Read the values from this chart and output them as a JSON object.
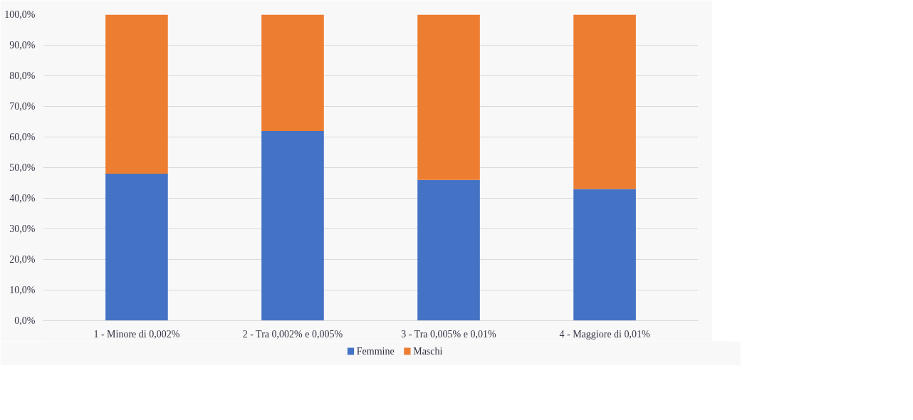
{
  "chart_data": {
    "type": "bar",
    "stacked": true,
    "categories": [
      "1 - Minore di 0,002%",
      "2 - Tra 0,002% e 0,005%",
      "3 - Tra 0,005% e 0,01%",
      "4 - Maggiore di 0,01%"
    ],
    "series": [
      {
        "name": "Femmine",
        "color": "#4472c4",
        "values": [
          48,
          62,
          46,
          43
        ]
      },
      {
        "name": "Maschi",
        "color": "#ed7d31",
        "values": [
          52,
          38,
          54,
          57
        ]
      }
    ],
    "ylim": [
      0,
      100
    ],
    "yticks": [
      {
        "value": 0,
        "label": "0,0%"
      },
      {
        "value": 10,
        "label": "10,0%"
      },
      {
        "value": 20,
        "label": "20,0%"
      },
      {
        "value": 30,
        "label": "30,0%"
      },
      {
        "value": 40,
        "label": "40,0%"
      },
      {
        "value": 50,
        "label": "50,0%"
      },
      {
        "value": 60,
        "label": "60,0%"
      },
      {
        "value": 70,
        "label": "70,0%"
      },
      {
        "value": 80,
        "label": "80,0%"
      },
      {
        "value": 90,
        "label": "90,0%"
      },
      {
        "value": 100,
        "label": "100,0%"
      }
    ],
    "grid": "y",
    "legend": "bottom"
  }
}
